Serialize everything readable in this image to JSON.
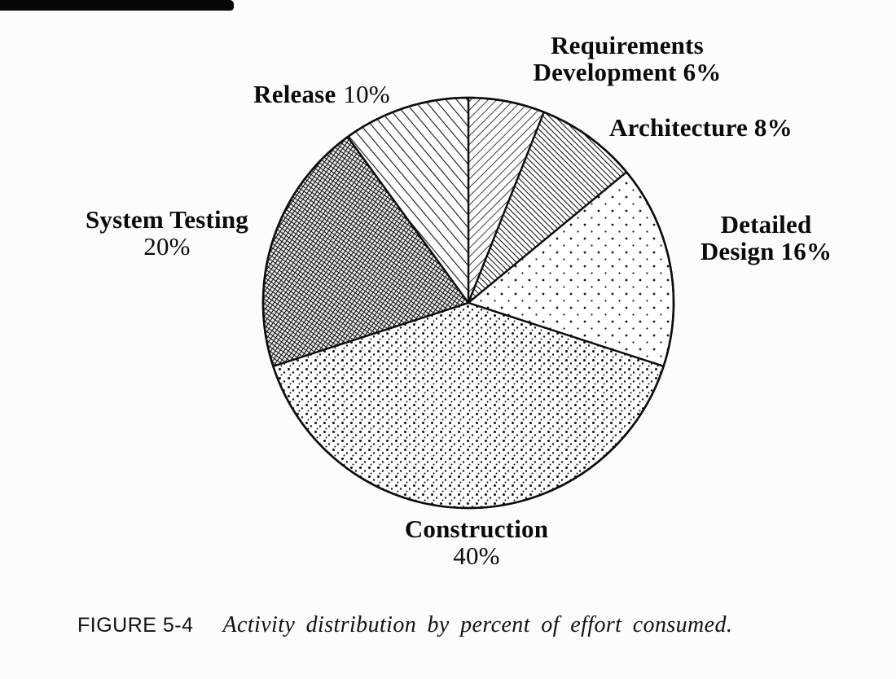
{
  "page": {
    "background": "#fcfcfa",
    "ink": "#0d0d0d"
  },
  "chart_data": {
    "type": "pie",
    "title": "",
    "start_angle_deg": -90,
    "direction": "clockwise",
    "total": 100,
    "unit": "%",
    "segments": [
      {
        "id": "requirements-development",
        "label": "Requirements Development",
        "value": 6,
        "pattern": "pat-req",
        "texture": "thin diagonal hatch"
      },
      {
        "id": "architecture",
        "label": "Architecture",
        "value": 8,
        "pattern": "pat-arch",
        "texture": "dense diagonal hatch"
      },
      {
        "id": "detailed-design",
        "label": "Detailed Design",
        "value": 16,
        "pattern": "pat-dots-sparse",
        "texture": "sparse dots"
      },
      {
        "id": "construction",
        "label": "Construction",
        "value": 40,
        "pattern": "pat-dots-dense",
        "texture": "dense stipple dots"
      },
      {
        "id": "system-testing",
        "label": "System Testing",
        "value": 20,
        "pattern": "pat-grid-dark",
        "texture": "dark crosshatch mesh"
      },
      {
        "id": "release",
        "label": "Release",
        "value": 10,
        "pattern": "pat-diag-wide",
        "texture": "wide diagonal hatch"
      }
    ]
  },
  "labels": {
    "requirements": {
      "line1": "Requirements",
      "line2": "Development 6%"
    },
    "architecture": {
      "text": "Architecture 8%"
    },
    "detailed_design": {
      "line1": "Detailed",
      "line2": "Design 16%"
    },
    "construction": {
      "name": "Construction",
      "value": "40%"
    },
    "system_testing": {
      "name": "System Testing",
      "value": "20%"
    },
    "release": {
      "name": "Release",
      "value": "10%"
    }
  },
  "caption": {
    "figure_label": "FIGURE 5-4",
    "text": "Activity distribution by percent of effort consumed."
  }
}
